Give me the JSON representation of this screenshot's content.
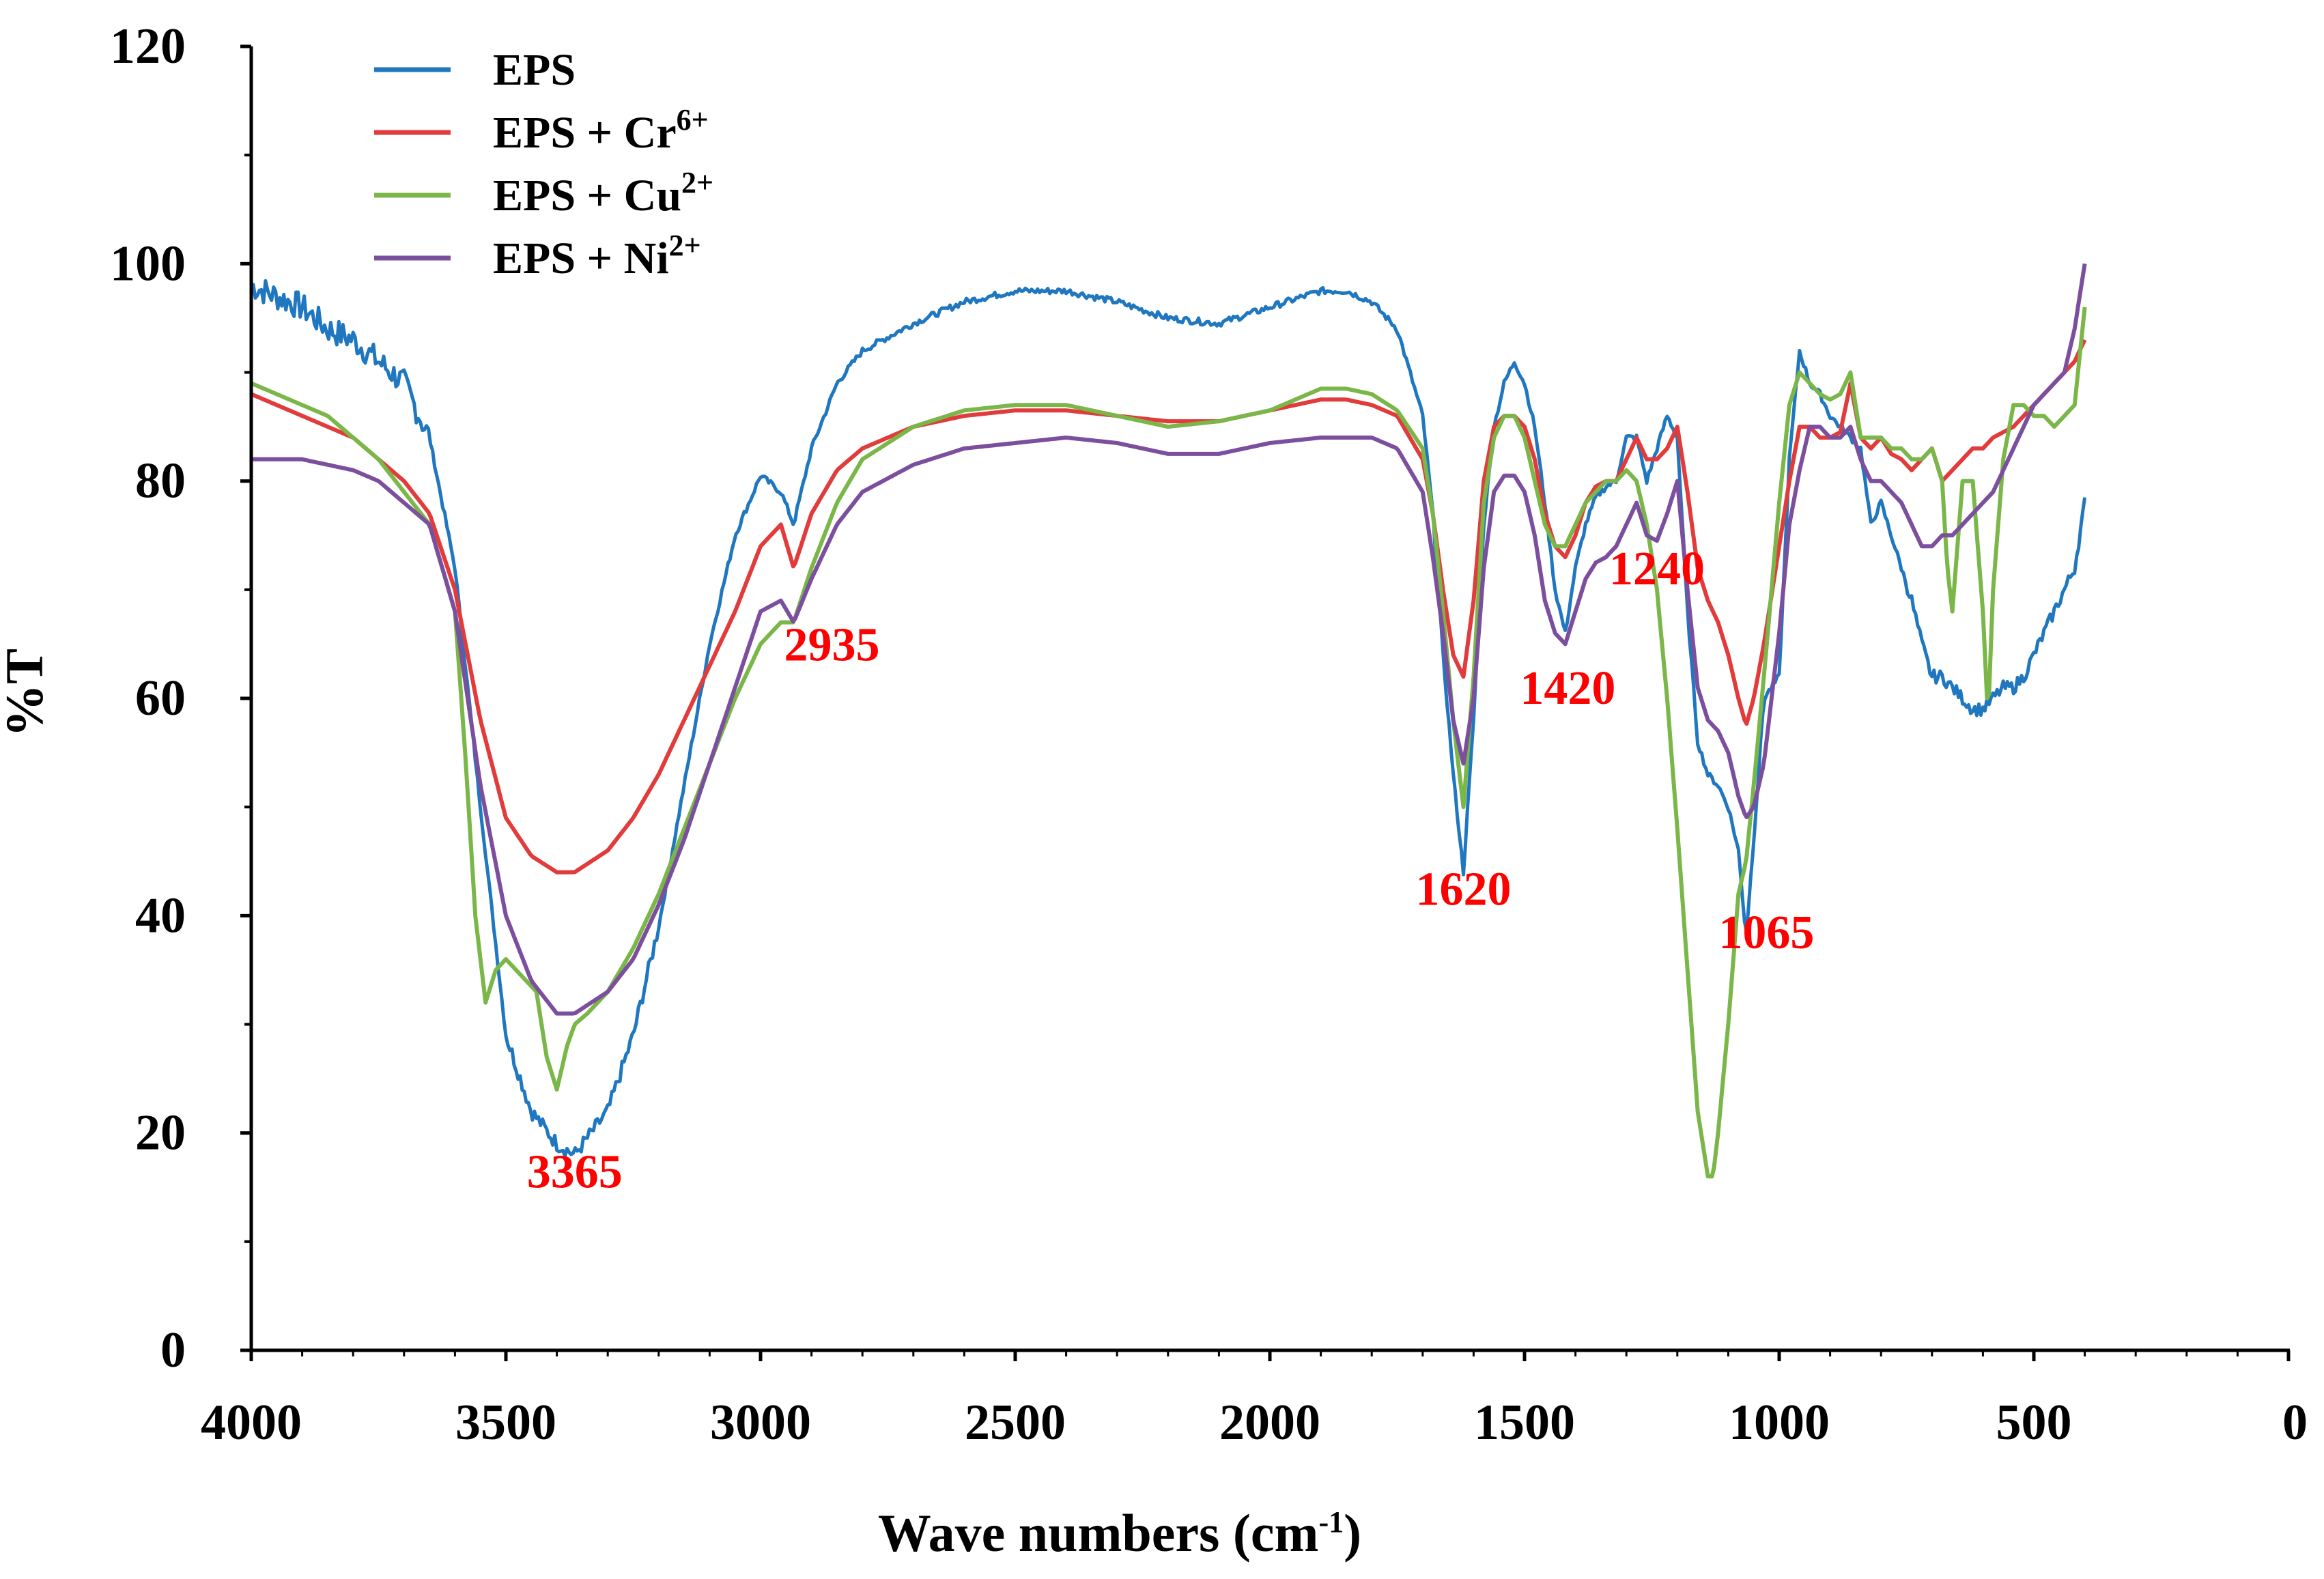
{
  "chart_data": {
    "type": "line",
    "title": "",
    "xlabel": "Wave numbers (cm-1)",
    "xlabel_parts": {
      "base": "Wave numbers (cm",
      "sup": "-1",
      "close": ")"
    },
    "ylabel": "%T",
    "xlim": [
      4000,
      0
    ],
    "ylim": [
      0,
      120
    ],
    "x_ticks": [
      "4000",
      "3500",
      "3000",
      "2500",
      "2000",
      "1500",
      "1000",
      "500",
      "0"
    ],
    "x_tick_values": [
      4000,
      3500,
      3000,
      2500,
      2000,
      1500,
      1000,
      500,
      0
    ],
    "y_ticks": [
      "0",
      "20",
      "40",
      "60",
      "80",
      "100",
      "120"
    ],
    "y_tick_values": [
      0,
      20,
      40,
      60,
      80,
      100,
      120
    ],
    "grid": false,
    "legend_position": "top-left",
    "series": [
      {
        "name": "EPS",
        "base": "EPS",
        "sup": "",
        "color": "#1f77c0",
        "noisy": true,
        "x": [
          4000,
          3950,
          3900,
          3850,
          3800,
          3750,
          3700,
          3650,
          3600,
          3550,
          3500,
          3450,
          3400,
          3365,
          3300,
          3250,
          3200,
          3150,
          3100,
          3050,
          3000,
          2960,
          2935,
          2900,
          2850,
          2800,
          2700,
          2600,
          2500,
          2400,
          2300,
          2200,
          2100,
          2000,
          1900,
          1850,
          1800,
          1750,
          1700,
          1680,
          1660,
          1640,
          1620,
          1600,
          1580,
          1560,
          1540,
          1520,
          1500,
          1480,
          1460,
          1440,
          1420,
          1400,
          1380,
          1360,
          1340,
          1320,
          1300,
          1280,
          1260,
          1240,
          1220,
          1200,
          1180,
          1160,
          1140,
          1120,
          1100,
          1080,
          1065,
          1050,
          1030,
          1000,
          980,
          960,
          940,
          920,
          900,
          880,
          860,
          840,
          820,
          800,
          780,
          760,
          740,
          720,
          700,
          680,
          660,
          640,
          620,
          600,
          580,
          560,
          540,
          520,
          500,
          480,
          460,
          440,
          420,
          400
        ],
        "y": [
          98,
          97,
          96,
          94,
          93,
          91,
          89,
          84,
          72,
          50,
          29,
          22,
          19,
          18,
          22,
          29,
          39,
          52,
          65,
          75,
          80.5,
          79,
          76,
          83,
          89,
          92,
          94.5,
          96.5,
          97.5,
          97.5,
          96.5,
          95,
          94.5,
          96,
          97.5,
          97.5,
          96.5,
          94,
          86,
          77,
          64,
          53,
          44,
          58,
          76,
          85,
          89,
          91,
          89,
          85,
          78,
          70,
          66,
          72,
          76,
          78.5,
          79.5,
          80,
          84,
          84,
          80,
          83,
          86,
          84,
          68,
          56,
          53,
          52,
          50,
          46,
          38,
          47,
          60,
          62,
          82,
          92,
          89,
          88,
          86,
          85,
          84,
          83,
          76,
          78,
          75,
          72,
          69,
          65,
          62,
          62,
          61,
          60,
          59,
          59,
          60,
          61,
          61,
          62,
          64,
          66,
          68,
          70,
          72,
          78
        ]
      },
      {
        "name": "EPS + Cr6+",
        "base": "EPS + Cr",
        "sup": "6+",
        "color": "#e23b3b",
        "noisy": false,
        "x": [
          4000,
          3950,
          3900,
          3850,
          3800,
          3750,
          3700,
          3650,
          3600,
          3550,
          3500,
          3450,
          3400,
          3365,
          3300,
          3250,
          3200,
          3150,
          3100,
          3050,
          3000,
          2960,
          2935,
          2900,
          2850,
          2800,
          2700,
          2600,
          2500,
          2400,
          2300,
          2200,
          2100,
          2000,
          1900,
          1850,
          1800,
          1750,
          1700,
          1680,
          1660,
          1640,
          1620,
          1600,
          1580,
          1560,
          1540,
          1520,
          1500,
          1480,
          1460,
          1440,
          1420,
          1400,
          1380,
          1360,
          1340,
          1320,
          1300,
          1280,
          1260,
          1240,
          1220,
          1200,
          1180,
          1160,
          1140,
          1120,
          1100,
          1080,
          1065,
          1050,
          1030,
          1000,
          980,
          960,
          940,
          920,
          900,
          880,
          860,
          840,
          820,
          800,
          780,
          760,
          740,
          720,
          700,
          680,
          660,
          640,
          620,
          600,
          580,
          560,
          540,
          520,
          500,
          480,
          460,
          440,
          420,
          400
        ],
        "y": [
          88,
          87,
          86,
          85,
          84,
          82,
          80,
          77,
          70,
          58,
          49,
          45.5,
          44,
          44,
          46,
          49,
          53,
          58,
          63,
          68,
          74,
          76,
          72,
          77,
          81,
          83,
          85,
          86,
          86.5,
          86.5,
          86,
          85.5,
          85.5,
          86.5,
          87.5,
          87.5,
          87,
          86,
          82,
          77,
          70,
          64,
          62,
          69,
          80,
          85,
          86,
          86,
          85,
          82,
          77,
          74,
          73,
          75,
          78,
          79.5,
          80,
          80,
          82,
          84,
          82,
          82,
          83,
          85,
          79,
          72,
          69,
          67,
          64,
          60,
          57.5,
          60,
          65,
          74,
          80,
          85,
          85,
          84,
          84,
          84.5,
          89,
          84,
          83,
          84,
          82.5,
          82,
          81,
          82,
          83,
          80,
          81,
          82,
          83,
          83,
          84,
          84.5,
          85,
          86,
          87,
          88,
          89,
          90,
          91,
          93
        ]
      },
      {
        "name": "EPS + Cu2+",
        "base": "EPS + Cu",
        "sup": "2+",
        "color": "#7ab648",
        "noisy": false,
        "x": [
          4000,
          3950,
          3900,
          3850,
          3800,
          3750,
          3700,
          3650,
          3600,
          3580,
          3560,
          3540,
          3520,
          3500,
          3480,
          3460,
          3440,
          3420,
          3400,
          3380,
          3365,
          3340,
          3300,
          3250,
          3200,
          3150,
          3100,
          3050,
          3000,
          2960,
          2935,
          2900,
          2850,
          2800,
          2700,
          2600,
          2500,
          2400,
          2300,
          2200,
          2100,
          2000,
          1900,
          1850,
          1800,
          1750,
          1700,
          1680,
          1660,
          1640,
          1620,
          1600,
          1580,
          1560,
          1540,
          1520,
          1500,
          1480,
          1460,
          1440,
          1420,
          1400,
          1380,
          1360,
          1340,
          1320,
          1300,
          1280,
          1260,
          1240,
          1220,
          1200,
          1180,
          1160,
          1140,
          1130,
          1120,
          1100,
          1080,
          1065,
          1050,
          1030,
          1000,
          980,
          960,
          940,
          920,
          900,
          880,
          860,
          840,
          820,
          800,
          780,
          760,
          740,
          720,
          700,
          680,
          670,
          660,
          650,
          640,
          620,
          600,
          590,
          580,
          560,
          540,
          520,
          500,
          480,
          460,
          440,
          420,
          400
        ],
        "y": [
          89,
          88,
          87,
          86,
          84,
          82,
          79,
          76,
          68,
          55,
          40,
          32,
          35,
          36,
          35,
          34,
          33,
          27,
          24,
          28,
          30,
          31,
          33,
          37,
          42,
          48,
          54,
          60,
          65,
          67,
          67,
          72,
          78,
          82,
          85,
          86.5,
          87,
          87,
          86,
          85,
          85.5,
          86.5,
          88.5,
          88.5,
          88,
          86.5,
          83,
          77,
          68,
          58,
          50,
          62,
          78,
          84,
          86,
          86,
          84,
          80,
          76,
          74,
          74,
          76,
          78,
          79,
          80,
          80,
          81,
          80,
          76,
          70,
          60,
          48,
          35,
          22,
          16,
          16,
          20,
          30,
          42,
          45,
          52,
          62,
          78,
          87,
          90,
          89,
          88,
          87.5,
          88,
          90,
          84,
          84,
          84,
          83,
          83,
          82,
          82,
          83,
          80,
          72,
          68,
          74,
          80,
          80,
          68,
          58,
          70,
          82,
          87,
          87,
          86,
          86,
          85,
          86,
          87,
          96
        ]
      },
      {
        "name": "EPS + Ni2+",
        "base": "EPS + Ni",
        "sup": "2+",
        "color": "#7b4f9e",
        "noisy": false,
        "x": [
          4000,
          3950,
          3900,
          3850,
          3800,
          3750,
          3700,
          3650,
          3600,
          3550,
          3500,
          3450,
          3400,
          3365,
          3300,
          3250,
          3200,
          3150,
          3100,
          3050,
          3000,
          2960,
          2935,
          2900,
          2850,
          2800,
          2700,
          2600,
          2500,
          2400,
          2300,
          2200,
          2100,
          2000,
          1900,
          1850,
          1800,
          1750,
          1700,
          1680,
          1660,
          1640,
          1620,
          1600,
          1580,
          1560,
          1540,
          1520,
          1500,
          1480,
          1460,
          1440,
          1420,
          1400,
          1380,
          1360,
          1340,
          1320,
          1300,
          1280,
          1260,
          1240,
          1220,
          1200,
          1180,
          1160,
          1140,
          1120,
          1100,
          1080,
          1065,
          1050,
          1030,
          1000,
          980,
          960,
          940,
          920,
          900,
          880,
          860,
          840,
          820,
          800,
          780,
          760,
          740,
          720,
          700,
          680,
          660,
          640,
          620,
          600,
          580,
          560,
          540,
          520,
          500,
          480,
          460,
          440,
          420,
          400
        ],
        "y": [
          82,
          82,
          82,
          81.5,
          81,
          80,
          78,
          76,
          68,
          52,
          40,
          34,
          31,
          31,
          33,
          36,
          41,
          47,
          54,
          61,
          68,
          69,
          67,
          71,
          76,
          79,
          81.5,
          83,
          83.5,
          84,
          83.5,
          82.5,
          82.5,
          83.5,
          84,
          84,
          84,
          83,
          79,
          73,
          66,
          58,
          54,
          60,
          72,
          79,
          80.5,
          80.5,
          79,
          75,
          69,
          66,
          65,
          68,
          71,
          72.5,
          73,
          74,
          76,
          78,
          75,
          74.5,
          77,
          80,
          70,
          61,
          58,
          57,
          55,
          51,
          49,
          50,
          54,
          66,
          76,
          81,
          85,
          85,
          84,
          84,
          85,
          82,
          80,
          80,
          79,
          78,
          76,
          74,
          74,
          75,
          75,
          76,
          77,
          78,
          79,
          81,
          83,
          85,
          87,
          88,
          89,
          90,
          94,
          100
        ]
      }
    ],
    "annotations": [
      {
        "text": "3365",
        "x": 3365,
        "y": 15
      },
      {
        "text": "2935",
        "x": 2860,
        "y": 63.5
      },
      {
        "text": "1620",
        "x": 1620,
        "y": 41
      },
      {
        "text": "1420",
        "x": 1415,
        "y": 59.5
      },
      {
        "text": "1240",
        "x": 1240,
        "y": 70.5
      },
      {
        "text": "1065",
        "x": 1025,
        "y": 37
      }
    ]
  }
}
